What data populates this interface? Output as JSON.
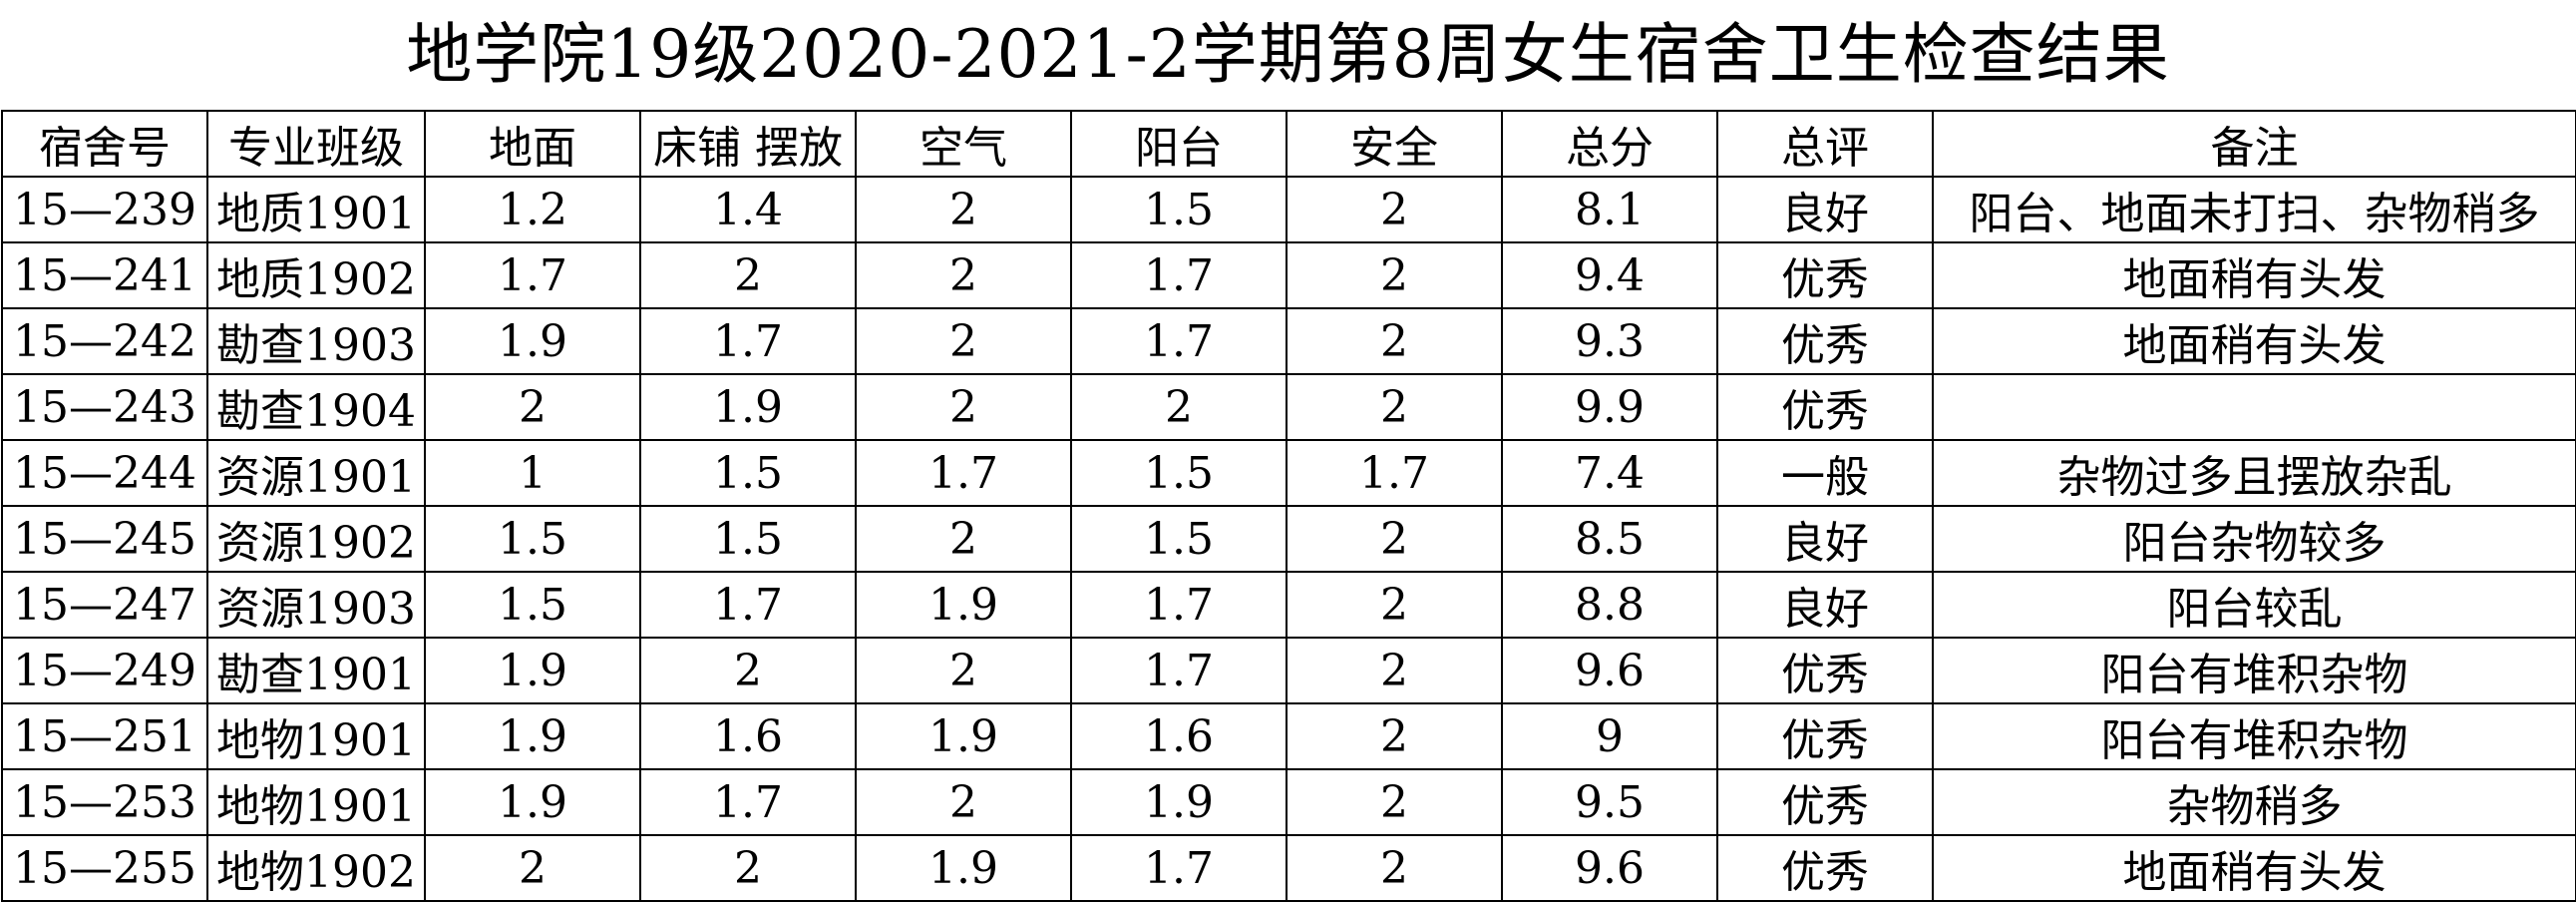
{
  "title": "地学院19级2020-2021-2学期第8周女生宿舍卫生检查结果",
  "table": {
    "headers": [
      "宿舍号",
      "专业班级",
      "地面",
      "床铺 摆放",
      "空气",
      "阳台",
      "安全",
      "总分",
      "总评",
      "备注"
    ],
    "rows": [
      [
        "15—239",
        "地质1901",
        "1.2",
        "1.4",
        "2",
        "1.5",
        "2",
        "8.1",
        "良好",
        "阳台、地面未打扫、杂物稍多"
      ],
      [
        "15—241",
        "地质1902",
        "1.7",
        "2",
        "2",
        "1.7",
        "2",
        "9.4",
        "优秀",
        "地面稍有头发"
      ],
      [
        "15—242",
        "勘查1903",
        "1.9",
        "1.7",
        "2",
        "1.7",
        "2",
        "9.3",
        "优秀",
        "地面稍有头发"
      ],
      [
        "15—243",
        "勘查1904",
        "2",
        "1.9",
        "2",
        "2",
        "2",
        "9.9",
        "优秀",
        ""
      ],
      [
        "15—244",
        "资源1901",
        "1",
        "1.5",
        "1.7",
        "1.5",
        "1.7",
        "7.4",
        "一般",
        "杂物过多且摆放杂乱"
      ],
      [
        "15—245",
        "资源1902",
        "1.5",
        "1.5",
        "2",
        "1.5",
        "2",
        "8.5",
        "良好",
        "阳台杂物较多"
      ],
      [
        "15—247",
        "资源1903",
        "1.5",
        "1.7",
        "1.9",
        "1.7",
        "2",
        "8.8",
        "良好",
        "阳台较乱"
      ],
      [
        "15—249",
        "勘查1901",
        "1.9",
        "2",
        "2",
        "1.7",
        "2",
        "9.6",
        "优秀",
        "阳台有堆积杂物"
      ],
      [
        "15—251",
        "地物1901",
        "1.9",
        "1.6",
        "1.9",
        "1.6",
        "2",
        "9",
        "优秀",
        "阳台有堆积杂物"
      ],
      [
        "15—253",
        "地物1901",
        "1.9",
        "1.7",
        "2",
        "1.9",
        "2",
        "9.5",
        "优秀",
        "杂物稍多"
      ],
      [
        "15—255",
        "地物1902",
        "2",
        "2",
        "1.9",
        "1.7",
        "2",
        "9.6",
        "优秀",
        "地面稍有头发"
      ]
    ]
  }
}
